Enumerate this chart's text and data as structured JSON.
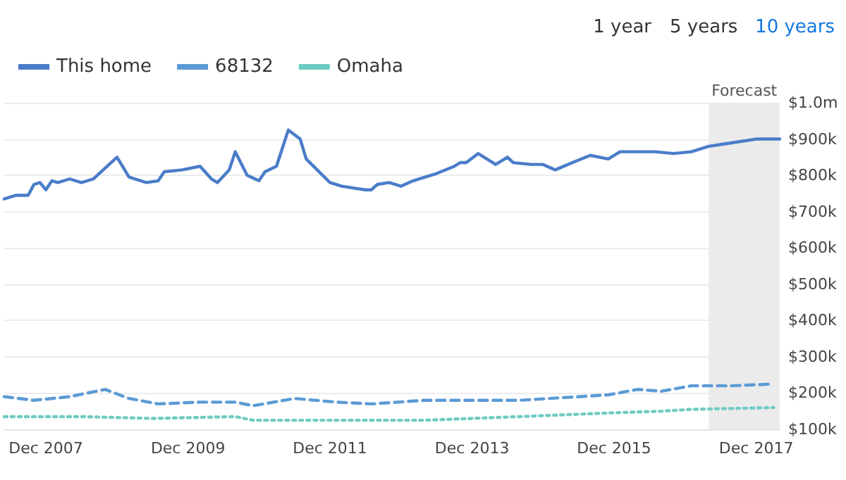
{
  "chart_data": {
    "type": "line",
    "annotations": [
      "1 year",
      "5 years",
      "10 years"
    ],
    "xlim": [
      "2007-05",
      "2018-04"
    ],
    "xticks": [
      {
        "value": "2007-12",
        "label": "Dec 2007"
      },
      {
        "value": "2009-12",
        "label": "Dec 2009"
      },
      {
        "value": "2011-12",
        "label": "Dec 2011"
      },
      {
        "value": "2013-12",
        "label": "Dec 2013"
      },
      {
        "value": "2015-12",
        "label": "Dec 2015"
      },
      {
        "value": "2017-12",
        "label": "Dec 2017"
      }
    ],
    "ylim": [
      100000,
      1000000
    ],
    "yticks": [
      {
        "value": 100000,
        "label": "$100k"
      },
      {
        "value": 200000,
        "label": "$200k"
      },
      {
        "value": 300000,
        "label": "$300k"
      },
      {
        "value": 400000,
        "label": "$400k"
      },
      {
        "value": 500000,
        "label": "$500k"
      },
      {
        "value": 600000,
        "label": "$600k"
      },
      {
        "value": 700000,
        "label": "$700k"
      },
      {
        "value": 800000,
        "label": "$800k"
      },
      {
        "value": 900000,
        "label": "$900k"
      },
      {
        "value": 1000000,
        "label": "$1.0m"
      }
    ],
    "grid": "y",
    "legend": "top left",
    "marker": "none",
    "bands": [
      {
        "axis": "x",
        "from": "2017-04",
        "to": "2018-04",
        "label": "Forecast",
        "color": "#ebebeb"
      }
    ],
    "series": [
      {
        "name": "This home",
        "color": "#4a7cc9",
        "line_style": "solid",
        "x": [
          "2007-05",
          "2007-07",
          "2007-09",
          "2007-10",
          "2007-11",
          "2007-12",
          "2008-01",
          "2008-02",
          "2008-04",
          "2008-06",
          "2008-08",
          "2008-12",
          "2009-02",
          "2009-05",
          "2009-07",
          "2009-08",
          "2009-11",
          "2010-02",
          "2010-04",
          "2010-05",
          "2010-07",
          "2010-08",
          "2010-10",
          "2010-12",
          "2011-01",
          "2011-03",
          "2011-05",
          "2011-07",
          "2011-08",
          "2011-12",
          "2012-02",
          "2012-06",
          "2012-07",
          "2012-08",
          "2012-10",
          "2012-12",
          "2013-02",
          "2013-06",
          "2013-09",
          "2013-10",
          "2013-11",
          "2014-01",
          "2014-04",
          "2014-06",
          "2014-07",
          "2014-10",
          "2014-12",
          "2015-02",
          "2015-05",
          "2015-08",
          "2015-11",
          "2016-01",
          "2016-07",
          "2016-10",
          "2017-01",
          "2017-04",
          "2017-08",
          "2017-12",
          "2018-04"
        ],
        "values": [
          735000,
          745000,
          745000,
          775000,
          780000,
          760000,
          785000,
          780000,
          790000,
          780000,
          790000,
          850000,
          795000,
          780000,
          785000,
          810000,
          815000,
          825000,
          790000,
          780000,
          815000,
          865000,
          800000,
          785000,
          810000,
          825000,
          925000,
          900000,
          845000,
          780000,
          770000,
          760000,
          760000,
          775000,
          780000,
          770000,
          785000,
          805000,
          825000,
          835000,
          835000,
          860000,
          830000,
          850000,
          835000,
          830000,
          830000,
          815000,
          835000,
          855000,
          845000,
          865000,
          865000,
          860000,
          865000,
          880000,
          890000,
          900000,
          900000
        ]
      },
      {
        "name": "68132",
        "color": "#5b9bd5",
        "line_style": "dashed",
        "x": [
          "2007-05",
          "2007-10",
          "2008-04",
          "2008-10",
          "2009-02",
          "2009-07",
          "2010-02",
          "2010-08",
          "2010-11",
          "2011-06",
          "2012-01",
          "2012-07",
          "2013-04",
          "2013-12",
          "2014-08",
          "2015-01",
          "2015-11",
          "2016-04",
          "2016-08",
          "2017-01",
          "2017-08",
          "2018-03"
        ],
        "values": [
          190000,
          180000,
          190000,
          210000,
          185000,
          170000,
          175000,
          175000,
          165000,
          185000,
          175000,
          170000,
          180000,
          180000,
          180000,
          185000,
          195000,
          210000,
          205000,
          220000,
          220000,
          225000
        ]
      },
      {
        "name": "Omaha",
        "color": "#6ecbc3",
        "line_style": "dotted",
        "x": [
          "2007-05",
          "2008-06",
          "2009-06",
          "2010-08",
          "2010-11",
          "2011-06",
          "2012-06",
          "2013-04",
          "2014-08",
          "2015-11",
          "2016-08",
          "2017-01",
          "2018-03"
        ],
        "values": [
          135000,
          135000,
          130000,
          135000,
          125000,
          125000,
          125000,
          125000,
          135000,
          145000,
          150000,
          155000,
          160000
        ]
      }
    ]
  }
}
